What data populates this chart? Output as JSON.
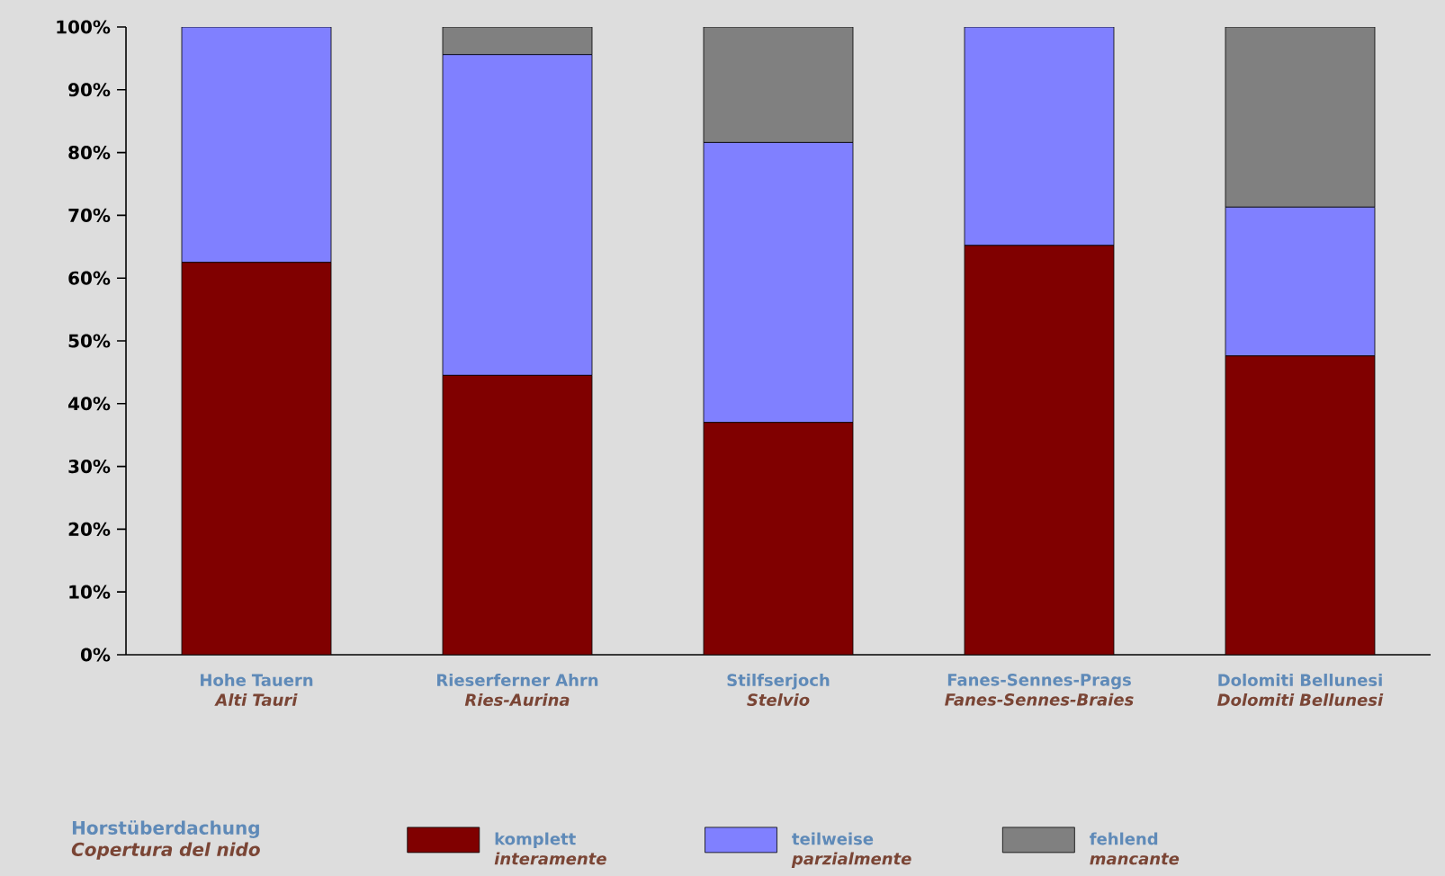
{
  "chart_data": {
    "type": "bar",
    "stacked": true,
    "categories": [
      "Hohe Tauern\n*Alti Tauri*",
      "Rieserferner Ahrn\n*Ries-Aurina*",
      "Stilfserjoch\n*Stelvio*",
      "Fanes-Sennes-Prags\n*Fanes-Sennes-Braies*",
      "Dolomiti Bellunesi\n*Dolomiti Bellunesi*"
    ],
    "series": [
      {
        "name": "komplett\n*interamente*",
        "color": "#800000",
        "values": [
          62.5,
          44.5,
          37.0,
          65.2,
          47.6
        ]
      },
      {
        "name": "teilweise\n*parzialmente*",
        "color": "#8080ff",
        "values": [
          37.5,
          51.1,
          44.6,
          34.8,
          23.7
        ]
      },
      {
        "name": "fehlend\n*mancante*",
        "color": "#808080",
        "values": [
          0,
          4.4,
          18.4,
          0,
          28.7
        ]
      }
    ],
    "legend_title": "Horstüberdachung\n*Copertura del nido*",
    "legend": "bottom",
    "ylim": [
      0,
      100
    ],
    "yticks": [
      {
        "value": 0,
        "label": "0%"
      },
      {
        "value": 10,
        "label": "10%"
      },
      {
        "value": 20,
        "label": "20%"
      },
      {
        "value": 30,
        "label": "30%"
      },
      {
        "value": 40,
        "label": "40%"
      },
      {
        "value": 50,
        "label": "50%"
      },
      {
        "value": 60,
        "label": "60%"
      },
      {
        "value": 70,
        "label": "70%"
      },
      {
        "value": 80,
        "label": "80%"
      },
      {
        "value": 90,
        "label": "90%"
      },
      {
        "value": 100,
        "label": "100%"
      }
    ]
  }
}
